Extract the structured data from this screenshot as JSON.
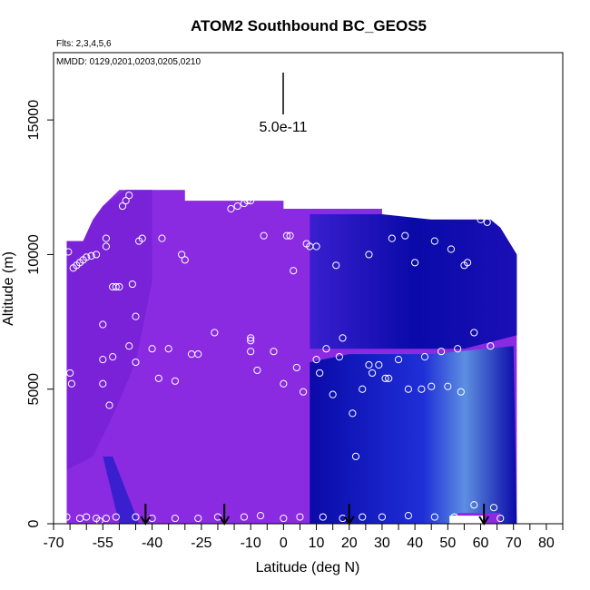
{
  "title": "ATOM2 Southbound BC_GEOS5",
  "flights_label": "Flts: 2,3,4,5,6",
  "dates_label": "MMDD: 0129,0201,0203,0205,0210",
  "scale_label": "5.0e-11",
  "colors": {
    "background_purple": "#8a2be2",
    "mid_blue": "#3a1fcf",
    "dark_blue": "#0a0aa8",
    "light_blue": "#5d8fe0",
    "marker": "#ffffff",
    "axis": "#000000"
  },
  "chart_data": {
    "type": "scatter",
    "title": "ATOM2 Southbound BC_GEOS5",
    "xlabel": "Latitude (deg N)",
    "ylabel": "Altitude (m)",
    "xlim": [
      -70,
      85
    ],
    "ylim": [
      0,
      17500
    ],
    "xticks": [
      -70,
      -55,
      -40,
      -25,
      -10,
      0,
      10,
      20,
      30,
      40,
      50,
      60,
      70,
      80
    ],
    "xtick_labels": [
      "-70",
      "-55",
      "-40",
      "-25",
      "-10",
      "0",
      "10",
      "20",
      "30",
      "40",
      "50",
      "60",
      "70",
      "80"
    ],
    "yticks": [
      0,
      5000,
      10000,
      15000
    ],
    "ytick_labels": [
      "0",
      "5000",
      "10000",
      "15000"
    ],
    "arrows_lat": [
      -42,
      -18,
      20,
      61
    ],
    "scale_bar_value": 5e-11,
    "curtain_note": "curtain of BC_GEOS5 mixing ratio along flight track; purple = low, dark blue = high",
    "series": [
      {
        "points": [
          [
            -65.5,
            10100
          ],
          [
            -65,
            5600
          ],
          [
            -64.5,
            5200
          ],
          [
            -64,
            9500
          ],
          [
            -63,
            9600
          ],
          [
            -62,
            9700
          ],
          [
            -61,
            9800
          ],
          [
            -60,
            9900
          ],
          [
            -58.5,
            9950
          ],
          [
            -57,
            10000
          ],
          [
            -55,
            7400
          ],
          [
            -55,
            6100
          ],
          [
            -55,
            5200
          ],
          [
            -54,
            10600
          ],
          [
            -54,
            10300
          ],
          [
            -53,
            4400
          ],
          [
            -52,
            6200
          ],
          [
            -52,
            8800
          ],
          [
            -51,
            8800
          ],
          [
            -50,
            8800
          ],
          [
            -49,
            11800
          ],
          [
            -48,
            12000
          ],
          [
            -47,
            12200
          ],
          [
            -47,
            6600
          ],
          [
            -46,
            8900
          ],
          [
            -45,
            6000
          ],
          [
            -45,
            7700
          ],
          [
            -44,
            10500
          ],
          [
            -43,
            10600
          ],
          [
            -40,
            6500
          ],
          [
            -38,
            5400
          ],
          [
            -37,
            10600
          ],
          [
            -35,
            6500
          ],
          [
            -33,
            5300
          ],
          [
            -31,
            10000
          ],
          [
            -30,
            9800
          ],
          [
            -28,
            6300
          ],
          [
            -26,
            6300
          ],
          [
            -21,
            7100
          ],
          [
            -16,
            11700
          ],
          [
            -14,
            11800
          ],
          [
            -12,
            11900
          ],
          [
            -11,
            12000
          ],
          [
            -10,
            12000
          ],
          [
            -10,
            6800
          ],
          [
            -10,
            6900
          ],
          [
            -10,
            6400
          ],
          [
            -8,
            5700
          ],
          [
            -6,
            10700
          ],
          [
            -3,
            6400
          ],
          [
            0,
            5200
          ],
          [
            1,
            10700
          ],
          [
            2,
            10700
          ],
          [
            3,
            9400
          ],
          [
            4,
            5800
          ],
          [
            6,
            4900
          ],
          [
            7,
            10400
          ],
          [
            8,
            10300
          ],
          [
            10,
            10300
          ],
          [
            10,
            6100
          ],
          [
            11,
            5600
          ],
          [
            13,
            6500
          ],
          [
            15,
            4800
          ],
          [
            16,
            9600
          ],
          [
            17,
            6200
          ],
          [
            18,
            6900
          ],
          [
            21,
            4100
          ],
          [
            22,
            2500
          ],
          [
            24,
            5000
          ],
          [
            26,
            10000
          ],
          [
            26,
            5900
          ],
          [
            27,
            5600
          ],
          [
            29,
            5900
          ],
          [
            31,
            5400
          ],
          [
            32,
            5400
          ],
          [
            33,
            10600
          ],
          [
            35,
            6100
          ],
          [
            37,
            10700
          ],
          [
            38,
            5000
          ],
          [
            40,
            9700
          ],
          [
            42,
            5000
          ],
          [
            43,
            6200
          ],
          [
            45,
            5100
          ],
          [
            46,
            10500
          ],
          [
            48,
            6400
          ],
          [
            50,
            5100
          ],
          [
            51,
            10200
          ],
          [
            53,
            6500
          ],
          [
            54,
            4900
          ],
          [
            55,
            9600
          ],
          [
            56,
            9700
          ],
          [
            58,
            7100
          ],
          [
            60,
            11300
          ],
          [
            62,
            11200
          ],
          [
            63,
            6600
          ],
          [
            64,
            600
          ],
          [
            66,
            200
          ],
          [
            -66,
            250
          ],
          [
            -62,
            200
          ],
          [
            -60,
            250
          ],
          [
            -57,
            200
          ],
          [
            -54,
            200
          ],
          [
            -51,
            250
          ],
          [
            -45,
            250
          ],
          [
            -40,
            200
          ],
          [
            -33,
            200
          ],
          [
            -26,
            200
          ],
          [
            -20,
            250
          ],
          [
            -12,
            250
          ],
          [
            -7,
            300
          ],
          [
            0,
            200
          ],
          [
            5,
            250
          ],
          [
            12,
            250
          ],
          [
            18,
            200
          ],
          [
            24,
            250
          ],
          [
            30,
            250
          ],
          [
            38,
            300
          ],
          [
            46,
            250
          ],
          [
            52,
            250
          ],
          [
            58,
            700
          ],
          [
            -56,
            100
          ]
        ]
      }
    ]
  }
}
